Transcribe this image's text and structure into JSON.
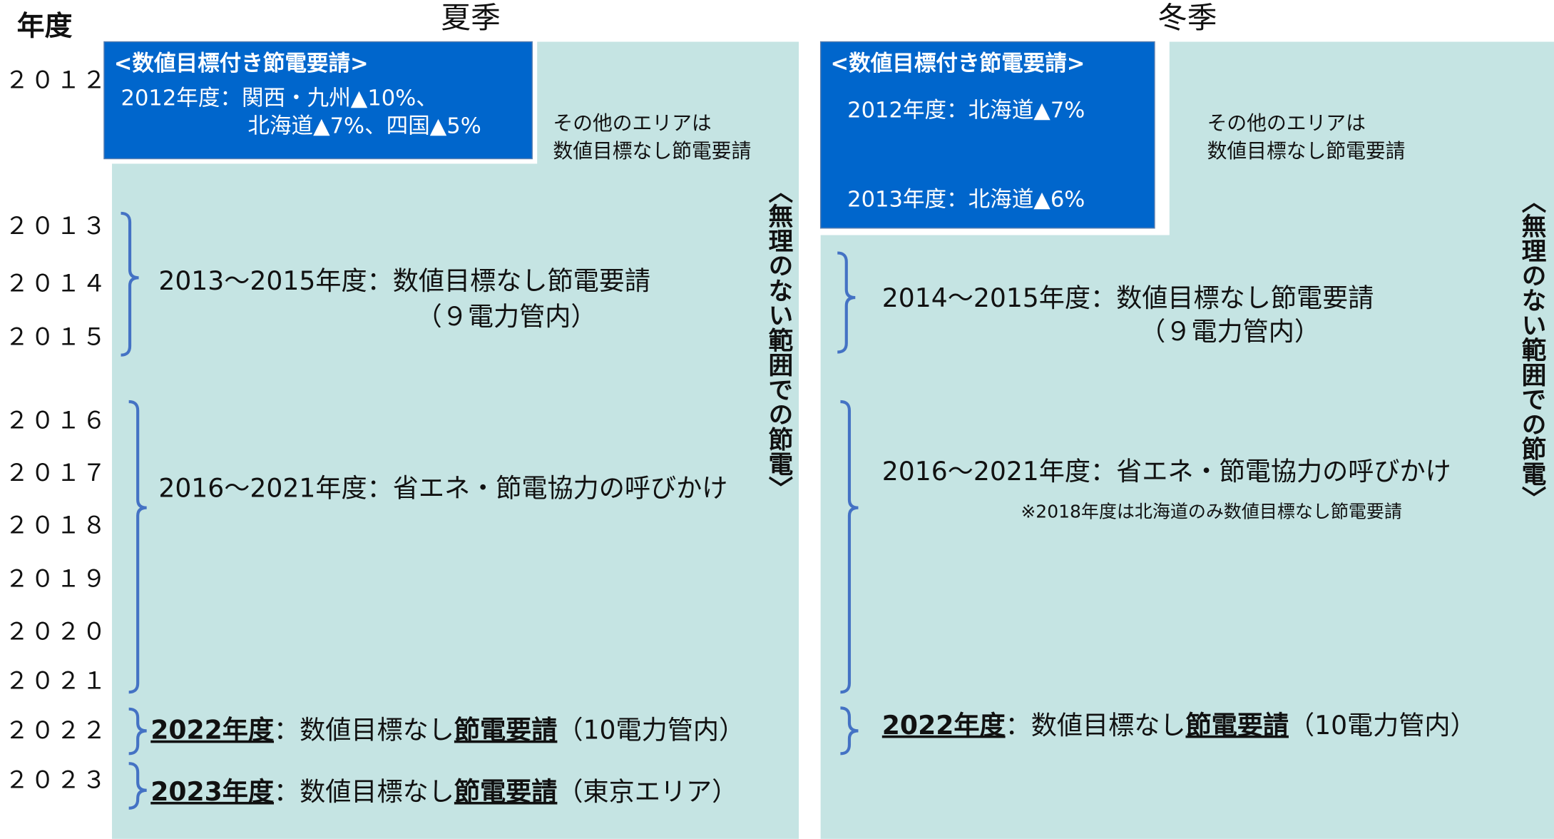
{
  "header": "年度",
  "years": [
    "２０１２",
    "２０１３",
    "２０１４",
    "２０１５",
    "２０１６",
    "２０１７",
    "２０１８",
    "２０１９",
    "２０２０",
    "２０２１",
    "２０２２",
    "２０２３"
  ],
  "summer": {
    "title": "夏季",
    "box": {
      "heading": "<数値目標付き節電要請>",
      "lines": [
        "2012年度：関西・九州▲10%、",
        "北海道▲7%、四国▲5%"
      ]
    },
    "note": [
      "その他のエリアは",
      "数値目標なし節電要請"
    ],
    "vertical": "〈無理のない範囲での節電〉",
    "items": [
      {
        "lines": [
          "2013～2015年度：数値目標なし節電要請",
          "（９電力管内）"
        ]
      },
      {
        "lines": [
          "2016～2021年度：省エネ・節電協力の呼びかけ"
        ]
      },
      {
        "parts": [
          "2022年度",
          "：数値目標なし",
          "節電要請",
          "（10電力管内）"
        ]
      },
      {
        "parts": [
          "2023年度",
          "：数値目標なし",
          "節電要請",
          "（東京エリア）"
        ]
      }
    ]
  },
  "winter": {
    "title": "冬季",
    "box": {
      "heading": "<数値目標付き節電要請>",
      "lines": [
        "2012年度：北海道▲7%",
        "2013年度：北海道▲6%"
      ]
    },
    "note": [
      "その他のエリアは",
      "数値目標なし節電要請"
    ],
    "vertical": "〈無理のない範囲での節電〉",
    "items": [
      {
        "lines": [
          "2014～2015年度：数値目標なし節電要請",
          "（９電力管内）"
        ]
      },
      {
        "lines": [
          "2016～2021年度：省エネ・節電協力の呼びかけ",
          "※2018年度は北海道のみ数値目標なし節電要請"
        ]
      },
      {
        "parts": [
          "2022年度",
          "：数値目標なし",
          "節電要請",
          "（10電力管内）"
        ]
      }
    ]
  }
}
